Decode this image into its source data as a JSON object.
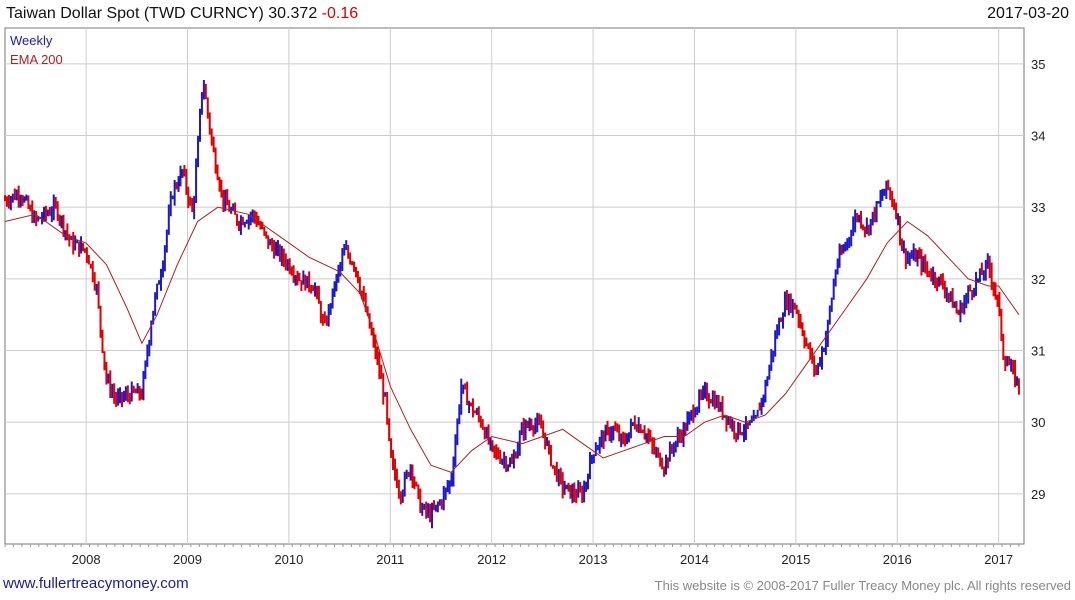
{
  "header": {
    "title": "Taiwan Dollar Spot (TWD CURNCY)",
    "last": "30.372",
    "change": "-0.16",
    "date": "2017-03-20"
  },
  "legend": {
    "series1": "Weekly",
    "series2": "EMA 200"
  },
  "footer": {
    "left": "www.fullertreacymoney.com",
    "right": "This website is © 2008-2017 Fuller Treacy Money plc. All rights reserved"
  },
  "colors": {
    "up": "#1a1acc",
    "down": "#e00000",
    "ema": "#b02020",
    "grid": "#cccccc"
  },
  "chart_data": {
    "type": "line",
    "title": "Taiwan Dollar Spot (TWD CURNCY)",
    "x_ticks": [
      "2008",
      "2009",
      "2010",
      "2011",
      "2012",
      "2013",
      "2014",
      "2015",
      "2016",
      "2017"
    ],
    "y_ticks": [
      "29",
      "30",
      "31",
      "32",
      "33",
      "34",
      "35"
    ],
    "ylim": [
      28.3,
      35.5
    ],
    "xlim": [
      2007.2,
      2017.25
    ],
    "grid": true,
    "legend_position": "top-left",
    "series": [
      {
        "name": "Weekly",
        "x": [
          2007.2,
          2007.35,
          2007.5,
          2007.7,
          2007.85,
          2008.0,
          2008.1,
          2008.15,
          2008.2,
          2008.3,
          2008.45,
          2008.55,
          2008.65,
          2008.75,
          2008.85,
          2008.95,
          2009.05,
          2009.1,
          2009.15,
          2009.2,
          2009.25,
          2009.35,
          2009.5,
          2009.65,
          2009.8,
          2010.0,
          2010.1,
          2010.25,
          2010.35,
          2010.45,
          2010.55,
          2010.65,
          2010.75,
          2010.85,
          2010.95,
          2011.0,
          2011.1,
          2011.2,
          2011.3,
          2011.4,
          2011.5,
          2011.6,
          2011.7,
          2011.8,
          2011.9,
          2012.0,
          2012.1,
          2012.2,
          2012.3,
          2012.4,
          2012.5,
          2012.6,
          2012.7,
          2012.8,
          2012.9,
          2013.0,
          2013.1,
          2013.2,
          2013.3,
          2013.4,
          2013.5,
          2013.6,
          2013.7,
          2013.8,
          2013.9,
          2014.0,
          2014.1,
          2014.2,
          2014.3,
          2014.4,
          2014.5,
          2014.6,
          2014.7,
          2014.8,
          2014.9,
          2015.0,
          2015.1,
          2015.2,
          2015.3,
          2015.4,
          2015.5,
          2015.6,
          2015.7,
          2015.8,
          2015.9,
          2016.0,
          2016.05,
          2016.1,
          2016.2,
          2016.3,
          2016.4,
          2016.5,
          2016.6,
          2016.7,
          2016.8,
          2016.9,
          2017.0,
          2017.05,
          2017.1,
          2017.2
        ],
        "values": [
          33.1,
          33.2,
          32.8,
          33.0,
          32.5,
          32.4,
          31.9,
          31.2,
          30.6,
          30.3,
          30.4,
          30.4,
          31.5,
          32.2,
          33.2,
          33.5,
          32.9,
          33.8,
          34.8,
          34.3,
          33.8,
          33.1,
          32.8,
          32.9,
          32.5,
          32.2,
          32.0,
          31.9,
          31.3,
          31.9,
          32.4,
          32.2,
          31.6,
          31.0,
          30.3,
          29.5,
          29.0,
          29.4,
          28.8,
          28.7,
          28.9,
          29.2,
          30.5,
          30.2,
          30.0,
          29.6,
          29.5,
          29.4,
          29.9,
          30.0,
          29.9,
          29.4,
          29.1,
          29.0,
          29.0,
          29.6,
          29.8,
          29.9,
          29.7,
          30.0,
          29.9,
          29.6,
          29.4,
          29.7,
          29.9,
          30.2,
          30.4,
          30.3,
          30.1,
          29.9,
          29.9,
          30.0,
          30.5,
          31.2,
          31.7,
          31.6,
          31.1,
          30.7,
          31.2,
          32.2,
          32.5,
          32.9,
          32.7,
          33.0,
          33.3,
          32.9,
          32.4,
          32.3,
          32.3,
          32.1,
          32.0,
          31.8,
          31.5,
          31.8,
          32.0,
          32.2,
          31.6,
          30.9,
          30.8,
          30.5
        ]
      },
      {
        "name": "EMA 200",
        "x": [
          2007.2,
          2007.5,
          2007.8,
          2008.0,
          2008.2,
          2008.4,
          2008.55,
          2008.7,
          2008.9,
          2009.1,
          2009.3,
          2009.6,
          2009.9,
          2010.2,
          2010.5,
          2010.7,
          2010.85,
          2011.0,
          2011.2,
          2011.4,
          2011.6,
          2011.8,
          2012.0,
          2012.3,
          2012.5,
          2012.7,
          2012.9,
          2013.1,
          2013.3,
          2013.5,
          2013.7,
          2013.9,
          2014.1,
          2014.3,
          2014.5,
          2014.7,
          2014.9,
          2015.1,
          2015.3,
          2015.5,
          2015.7,
          2015.9,
          2016.1,
          2016.3,
          2016.5,
          2016.7,
          2016.9,
          2017.0,
          2017.2
        ],
        "values": [
          32.8,
          32.9,
          32.6,
          32.5,
          32.2,
          31.6,
          31.1,
          31.5,
          32.2,
          32.8,
          33.0,
          32.9,
          32.6,
          32.3,
          32.1,
          31.8,
          31.2,
          30.5,
          29.9,
          29.4,
          29.3,
          29.6,
          29.8,
          29.7,
          29.8,
          29.9,
          29.7,
          29.5,
          29.6,
          29.7,
          29.8,
          29.8,
          30.0,
          30.1,
          30.0,
          30.1,
          30.4,
          30.8,
          31.2,
          31.6,
          32.0,
          32.5,
          32.8,
          32.6,
          32.3,
          32.0,
          31.9,
          31.9,
          31.5
        ]
      }
    ]
  }
}
